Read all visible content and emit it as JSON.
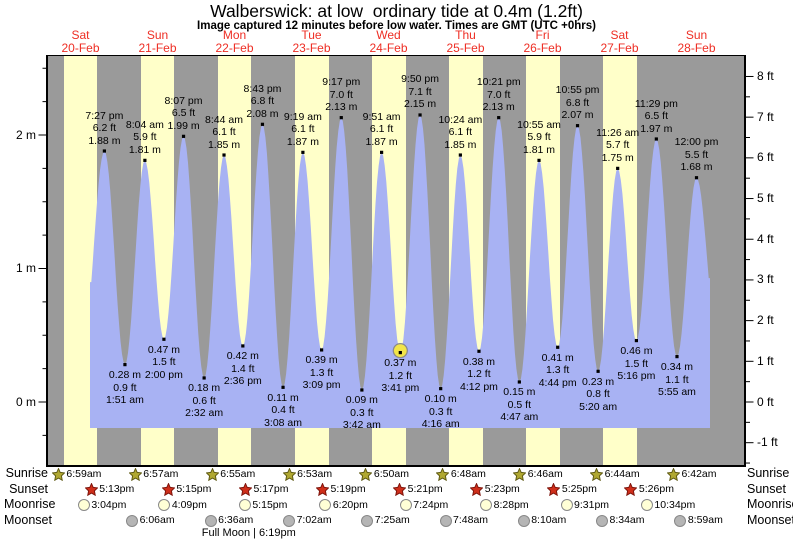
{
  "title": "Walberswick: at low  ordinary tide at 0.4m (1.2ft)",
  "subtitle": "Image captured 12 minutes before low water. Times are GMT (UTC +0hrs)",
  "chart_data": {
    "type": "area",
    "title": "Walberswick: at low  ordinary tide at 0.4m (1.2ft)",
    "subtitle": "Image captured 12 minutes before low water. Times are GMT (UTC +0hrs)",
    "days": [
      {
        "name": "Sat",
        "date": "20-Feb"
      },
      {
        "name": "Sun",
        "date": "21-Feb"
      },
      {
        "name": "Mon",
        "date": "22-Feb"
      },
      {
        "name": "Tue",
        "date": "23-Feb"
      },
      {
        "name": "Wed",
        "date": "24-Feb"
      },
      {
        "name": "Thu",
        "date": "25-Feb"
      },
      {
        "name": "Fri",
        "date": "26-Feb"
      },
      {
        "name": "Sat",
        "date": "27-Feb"
      },
      {
        "name": "Sun",
        "date": "28-Feb"
      }
    ],
    "y_axis_left": {
      "unit": "m",
      "values": [
        0,
        1,
        2
      ],
      "tick_labels": [
        "0 m",
        "1 m",
        "2 m"
      ],
      "minor_step": 0.25
    },
    "y_axis_right": {
      "unit": "ft",
      "values": [
        -1,
        0,
        1,
        2,
        3,
        4,
        5,
        6,
        7,
        8
      ],
      "tick_labels": [
        "-1 ft",
        "0 ft",
        "1 ft",
        "2 ft",
        "3 ft",
        "4 ft",
        "5 ft",
        "6 ft",
        "7 ft",
        "8 ft"
      ],
      "minor_step": 0.5
    },
    "tide_points": [
      {
        "type": "high",
        "day": 0,
        "time": "7:27 pm",
        "height_ft": 6.2,
        "height_m": 1.88
      },
      {
        "type": "low",
        "day": 1,
        "time": "1:51 am",
        "height_ft": 0.9,
        "height_m": 0.28
      },
      {
        "type": "high",
        "day": 1,
        "time": "8:04 am",
        "height_ft": 5.9,
        "height_m": 1.81
      },
      {
        "type": "low",
        "day": 1,
        "time": "2:00 pm",
        "height_ft": 1.5,
        "height_m": 0.47
      },
      {
        "type": "high",
        "day": 1,
        "time": "8:07 pm",
        "height_ft": 6.5,
        "height_m": 1.99
      },
      {
        "type": "low",
        "day": 2,
        "time": "2:32 am",
        "height_ft": 0.6,
        "height_m": 0.18
      },
      {
        "type": "high",
        "day": 2,
        "time": "8:44 am",
        "height_ft": 6.1,
        "height_m": 1.85
      },
      {
        "type": "low",
        "day": 2,
        "time": "2:36 pm",
        "height_ft": 1.4,
        "height_m": 0.42
      },
      {
        "type": "high",
        "day": 2,
        "time": "8:43 pm",
        "height_ft": 6.8,
        "height_m": 2.08
      },
      {
        "type": "low",
        "day": 3,
        "time": "3:08 am",
        "height_ft": 0.4,
        "height_m": 0.11
      },
      {
        "type": "high",
        "day": 3,
        "time": "9:19 am",
        "height_ft": 6.1,
        "height_m": 1.87
      },
      {
        "type": "low",
        "day": 3,
        "time": "3:09 pm",
        "height_ft": 1.3,
        "height_m": 0.39
      },
      {
        "type": "high",
        "day": 3,
        "time": "9:17 pm",
        "height_ft": 7.0,
        "height_m": 2.13
      },
      {
        "type": "low",
        "day": 4,
        "time": "3:42 am",
        "height_ft": 0.3,
        "height_m": 0.09
      },
      {
        "type": "high",
        "day": 4,
        "time": "9:51 am",
        "height_ft": 6.1,
        "height_m": 1.87
      },
      {
        "type": "low",
        "day": 4,
        "time": "3:41 pm",
        "height_ft": 1.2,
        "height_m": 0.37,
        "highlighted": true
      },
      {
        "type": "high",
        "day": 4,
        "time": "9:50 pm",
        "height_ft": 7.1,
        "height_m": 2.15
      },
      {
        "type": "low",
        "day": 5,
        "time": "4:16 am",
        "height_ft": 0.3,
        "height_m": 0.1
      },
      {
        "type": "high",
        "day": 5,
        "time": "10:24 am",
        "height_ft": 6.1,
        "height_m": 1.85
      },
      {
        "type": "low",
        "day": 5,
        "time": "4:12 pm",
        "height_ft": 1.2,
        "height_m": 0.38
      },
      {
        "type": "high",
        "day": 5,
        "time": "10:21 pm",
        "height_ft": 7.0,
        "height_m": 2.13
      },
      {
        "type": "low",
        "day": 6,
        "time": "4:47 am",
        "height_ft": 0.5,
        "height_m": 0.15
      },
      {
        "type": "high",
        "day": 6,
        "time": "10:55 am",
        "height_ft": 5.9,
        "height_m": 1.81
      },
      {
        "type": "low",
        "day": 6,
        "time": "4:44 pm",
        "height_ft": 1.3,
        "height_m": 0.41
      },
      {
        "type": "high",
        "day": 6,
        "time": "10:55 pm",
        "height_ft": 6.8,
        "height_m": 2.07
      },
      {
        "type": "low",
        "day": 7,
        "time": "5:20 am",
        "height_ft": 0.8,
        "height_m": 0.23
      },
      {
        "type": "high",
        "day": 7,
        "time": "11:26 am",
        "height_ft": 5.7,
        "height_m": 1.75
      },
      {
        "type": "low",
        "day": 7,
        "time": "5:16 pm",
        "height_ft": 1.5,
        "height_m": 0.46
      },
      {
        "type": "high",
        "day": 7,
        "time": "11:29 pm",
        "height_ft": 6.5,
        "height_m": 1.97
      },
      {
        "type": "low",
        "day": 8,
        "time": "5:55 am",
        "height_ft": 1.1,
        "height_m": 0.34
      },
      {
        "type": "high",
        "day": 8,
        "time": "12:00 pm",
        "height_ft": 5.5,
        "height_m": 1.68
      }
    ]
  },
  "almanac": {
    "order": [
      "sunrise",
      "sunset",
      "moonrise",
      "moonset"
    ],
    "rows": {
      "sunrise": {
        "label": "Sunrise",
        "icon": "sunrise-star-icon",
        "entries": [
          {
            "day": 0,
            "time": "6:59am"
          },
          {
            "day": 1,
            "time": "6:57am"
          },
          {
            "day": 2,
            "time": "6:55am"
          },
          {
            "day": 3,
            "time": "6:53am"
          },
          {
            "day": 4,
            "time": "6:50am"
          },
          {
            "day": 5,
            "time": "6:48am"
          },
          {
            "day": 6,
            "time": "6:46am"
          },
          {
            "day": 7,
            "time": "6:44am"
          },
          {
            "day": 8,
            "time": "6:42am"
          }
        ]
      },
      "sunset": {
        "label": "Sunset",
        "icon": "sunset-star-icon",
        "entries": [
          {
            "day": 0,
            "time": "5:13pm"
          },
          {
            "day": 1,
            "time": "5:15pm"
          },
          {
            "day": 2,
            "time": "5:17pm"
          },
          {
            "day": 3,
            "time": "5:19pm"
          },
          {
            "day": 4,
            "time": "5:21pm"
          },
          {
            "day": 5,
            "time": "5:23pm"
          },
          {
            "day": 6,
            "time": "5:25pm"
          },
          {
            "day": 7,
            "time": "5:26pm"
          }
        ]
      },
      "moonrise": {
        "label": "Moonrise",
        "icon": "moonrise-circle-icon",
        "entries": [
          {
            "day": 0,
            "time": "3:04pm"
          },
          {
            "day": 1,
            "time": "4:09pm"
          },
          {
            "day": 2,
            "time": "5:15pm"
          },
          {
            "day": 3,
            "time": "6:20pm"
          },
          {
            "day": 4,
            "time": "7:24pm"
          },
          {
            "day": 5,
            "time": "8:28pm"
          },
          {
            "day": 6,
            "time": "9:31pm"
          },
          {
            "day": 7,
            "time": "10:34pm"
          }
        ]
      },
      "moonset": {
        "label": "Moonset",
        "icon": "moonset-circle-icon",
        "entries": [
          {
            "day": 1,
            "time": "6:06am"
          },
          {
            "day": 2,
            "time": "6:36am"
          },
          {
            "day": 3,
            "time": "7:02am"
          },
          {
            "day": 4,
            "time": "7:25am"
          },
          {
            "day": 5,
            "time": "7:48am"
          },
          {
            "day": 6,
            "time": "8:10am"
          },
          {
            "day": 7,
            "time": "8:34am"
          },
          {
            "day": 8,
            "time": "8:59am"
          }
        ]
      }
    },
    "full_moon": {
      "text": "Full Moon | 6:19pm",
      "day": 2,
      "time": "6:19pm"
    }
  },
  "colors": {
    "night_band": "#9a9a9a",
    "day_band": "#ffffc9",
    "tide_fill": "#a8b2f3",
    "day_label_red": "#ee2e24",
    "sunrise_star": "#b0a832",
    "sunrise_star_stroke": "#5f5a14",
    "sunset_star": "#cf2e1a",
    "sunset_star_stroke": "#7e150c",
    "moonrise_fill": "#ffffd6",
    "moonset_fill": "#b5b5b5",
    "highlight_circle": "#f2e549"
  }
}
